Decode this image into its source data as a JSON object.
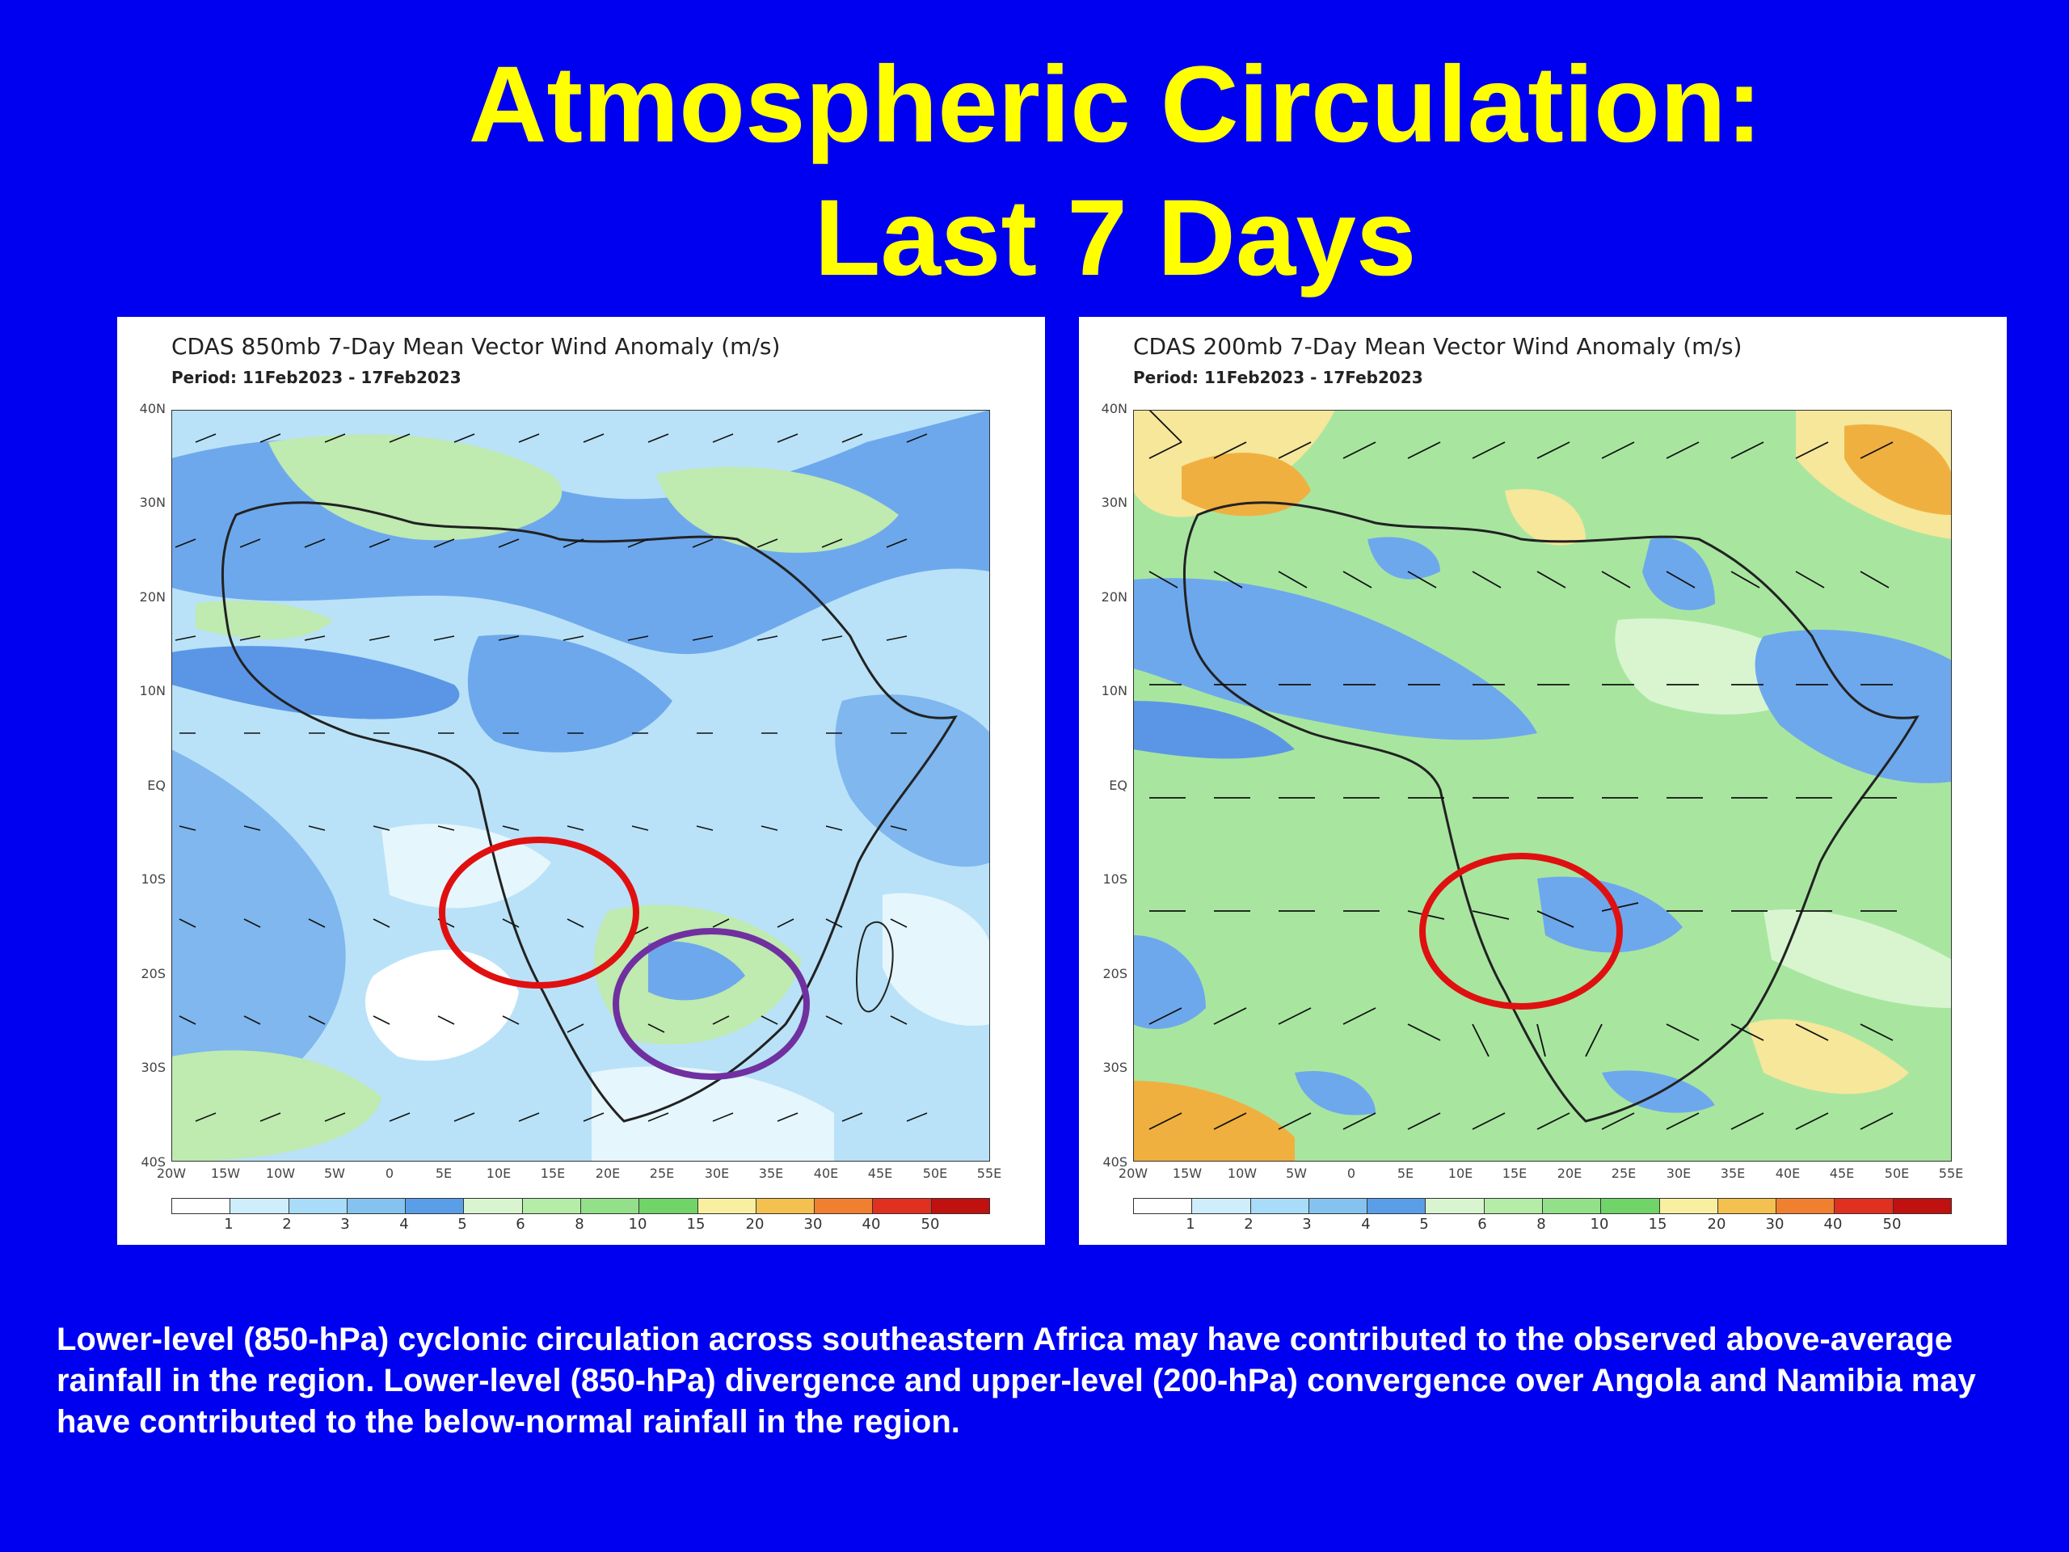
{
  "title_line1": "Atmospheric Circulation:",
  "title_line2": "Last 7 Days",
  "panels": [
    {
      "title": "CDAS 850mb 7-Day Mean Vector Wind Anomaly (m/s)",
      "period": "Period: 11Feb2023 - 17Feb2023",
      "annotations": [
        "red-circle",
        "purple-circle"
      ]
    },
    {
      "title": "CDAS 200mb 7-Day Mean Vector Wind Anomaly (m/s)",
      "period": "Period: 11Feb2023 - 17Feb2023",
      "annotations": [
        "red-circle"
      ]
    }
  ],
  "lat_labels": [
    "40N",
    "30N",
    "20N",
    "10N",
    "EQ",
    "10S",
    "20S",
    "30S",
    "40S"
  ],
  "lon_labels": [
    "20W",
    "15W",
    "10W",
    "5W",
    "0",
    "5E",
    "10E",
    "15E",
    "20E",
    "25E",
    "30E",
    "35E",
    "40E",
    "45E",
    "50E",
    "55E"
  ],
  "colorbar": {
    "labels": [
      "1",
      "2",
      "3",
      "4",
      "5",
      "6",
      "8",
      "10",
      "15",
      "20",
      "30",
      "40",
      "50"
    ],
    "colors": [
      "#ffffff",
      "#cfeefc",
      "#a8dcf8",
      "#84c3f0",
      "#5a9ee8",
      "#d8f5d0",
      "#b4eca8",
      "#94e08a",
      "#70d468",
      "#f8f0a0",
      "#f4c050",
      "#f08030",
      "#e03020",
      "#c01010",
      "#900808"
    ]
  },
  "caption": "Lower-level (850-hPa) cyclonic circulation across southeastern Africa may have contributed to the observed above-average rainfall in the region. Lower-level (850-hPa) divergence and upper-level (200-hPa) convergence over Angola and Namibia may have contributed to the below-normal rainfall in the region."
}
